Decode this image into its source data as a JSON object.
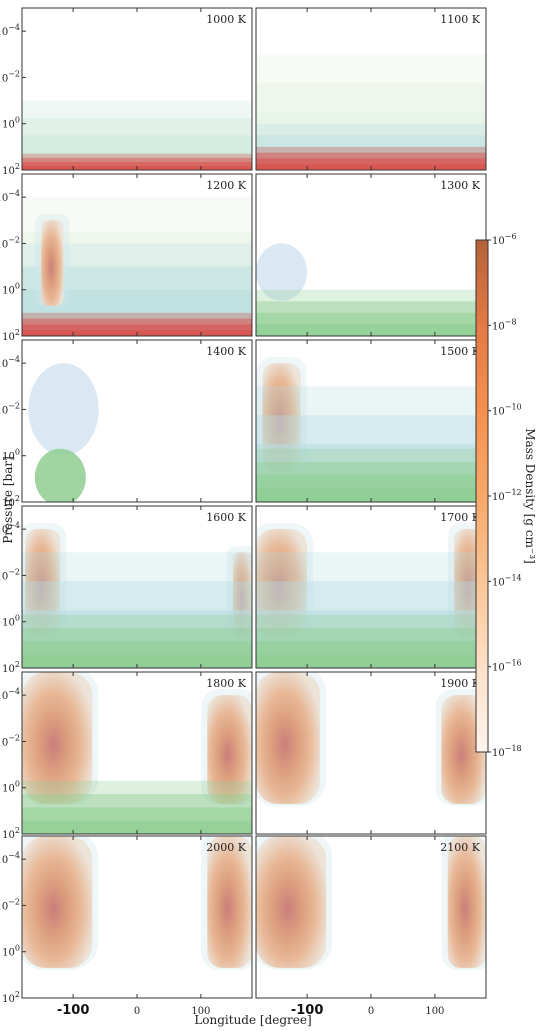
{
  "chart_data": {
    "type": "heatmap",
    "layout": "6 rows x 2 columns of contour panels",
    "xlabel": "Longitude [degree]",
    "ylabel": "Pressure [bar]",
    "x_ticks": [
      "-100",
      "0",
      "100"
    ],
    "x_range": [
      -180,
      180
    ],
    "y_scale": "log",
    "y_inverted": true,
    "y_range_bar": [
      100,
      1e-05
    ],
    "y_ticks": [
      "10^-4",
      "10^-2",
      "10^0",
      "10^2"
    ],
    "colorbar": {
      "label": "Mass Density [g cm^-3]",
      "ticks": [
        "10^-6",
        "10^-8",
        "10^-10",
        "10^-12",
        "10^-14",
        "10^-16",
        "10^-18"
      ],
      "scale": "log",
      "range": [
        1e-18,
        1e-06
      ],
      "colors": [
        "#b5623a",
        "#e47a45",
        "#f6904f",
        "#f8a868",
        "#fbc596",
        "#fde0c8",
        "#fff3eb"
      ]
    },
    "panels": [
      {
        "temperature": "1000 K",
        "row": 0,
        "col": 0,
        "features": [
          {
            "kind": "band",
            "p_top": 0.1,
            "species": "cyan-green stratified cloud deck"
          },
          {
            "kind": "band",
            "p_top": 20,
            "species": "red deep cloud"
          }
        ]
      },
      {
        "temperature": "1100 K",
        "row": 0,
        "col": 1,
        "features": [
          {
            "kind": "band",
            "p_top": 0.001,
            "species": "green haze"
          },
          {
            "kind": "band",
            "p_top": 1,
            "species": "cyan cloud"
          },
          {
            "kind": "band",
            "p_top": 10,
            "species": "red deep cloud"
          }
        ]
      },
      {
        "temperature": "1200 K",
        "row": 1,
        "col": 0,
        "features": [
          {
            "kind": "band",
            "p_top": 0.0001,
            "species": "green haze"
          },
          {
            "kind": "band",
            "p_top": 0.01,
            "species": "cyan cloud"
          },
          {
            "kind": "column",
            "lon": [
              -150,
              -115
            ],
            "p_top": 0.001,
            "species": "orange-red plume"
          },
          {
            "kind": "band",
            "p_top": 10,
            "species": "red deep cloud"
          }
        ]
      },
      {
        "temperature": "1300 K",
        "row": 1,
        "col": 1,
        "features": [
          {
            "kind": "patch",
            "lon": [
              -180,
              -100
            ],
            "p_top": 0.01,
            "species": "light blue cloud"
          },
          {
            "kind": "band",
            "p_top": 1,
            "species": "green cloud"
          }
        ]
      },
      {
        "temperature": "1400 K",
        "row": 2,
        "col": 0,
        "features": [
          {
            "kind": "patch",
            "lon": [
              -170,
              -60
            ],
            "p_top": 0.0001,
            "species": "light blue cloud"
          },
          {
            "kind": "patch",
            "lon": [
              -160,
              -80
            ],
            "p_top": 0.5,
            "species": "green cloud"
          }
        ]
      },
      {
        "temperature": "1500 K",
        "row": 2,
        "col": 1,
        "features": [
          {
            "kind": "column",
            "lon": [
              -170,
              -110
            ],
            "p_top": 0.0001,
            "species": "orange plume"
          },
          {
            "kind": "band",
            "p_top": 0.001,
            "species": "cyan cloud"
          },
          {
            "kind": "band",
            "p_top": 0.5,
            "species": "green cloud"
          }
        ]
      },
      {
        "temperature": "1600 K",
        "row": 3,
        "col": 0,
        "features": [
          {
            "kind": "column",
            "lon": [
              -175,
              -120
            ],
            "p_top": 0.0001,
            "species": "orange plume"
          },
          {
            "kind": "column",
            "lon": [
              150,
              180
            ],
            "p_top": 0.001,
            "species": "orange plume"
          },
          {
            "kind": "band",
            "p_top": 0.001,
            "species": "cyan cloud"
          },
          {
            "kind": "band",
            "p_top": 0.5,
            "species": "green cloud"
          }
        ]
      },
      {
        "temperature": "1700 K",
        "row": 3,
        "col": 1,
        "features": [
          {
            "kind": "column",
            "lon": [
              -180,
              -100
            ],
            "p_top": 0.0001,
            "species": "orange-red plume"
          },
          {
            "kind": "column",
            "lon": [
              130,
              180
            ],
            "p_top": 0.0001,
            "species": "orange-red plume"
          },
          {
            "kind": "band",
            "p_top": 0.001,
            "species": "cyan cloud"
          },
          {
            "kind": "band",
            "p_top": 0.5,
            "species": "green cloud"
          }
        ]
      },
      {
        "temperature": "1800 K",
        "row": 4,
        "col": 0,
        "features": [
          {
            "kind": "column",
            "lon": [
              -180,
              -70
            ],
            "p_top": 1e-05,
            "species": "orange-red plume"
          },
          {
            "kind": "column",
            "lon": [
              110,
              180
            ],
            "p_top": 0.0001,
            "species": "orange-red plume"
          },
          {
            "kind": "band",
            "p_top": 0.5,
            "species": "green cloud"
          }
        ]
      },
      {
        "temperature": "1900 K",
        "row": 4,
        "col": 1,
        "features": [
          {
            "kind": "column",
            "lon": [
              -180,
              -80
            ],
            "p_top": 1e-05,
            "species": "orange-red plume"
          },
          {
            "kind": "column",
            "lon": [
              110,
              180
            ],
            "p_top": 0.0001,
            "species": "orange-red plume"
          }
        ]
      },
      {
        "temperature": "2000 K",
        "row": 5,
        "col": 0,
        "features": [
          {
            "kind": "column",
            "lon": [
              -180,
              -70
            ],
            "p_top": 1e-05,
            "species": "orange-red plume"
          },
          {
            "kind": "column",
            "lon": [
              110,
              180
            ],
            "p_top": 1e-05,
            "species": "orange-red plume"
          }
        ]
      },
      {
        "temperature": "2100 K",
        "row": 5,
        "col": 1,
        "features": [
          {
            "kind": "column",
            "lon": [
              -180,
              -70
            ],
            "p_top": 1e-05,
            "species": "orange-red plume"
          },
          {
            "kind": "column",
            "lon": [
              120,
              180
            ],
            "p_top": 1e-05,
            "species": "orange-red plume"
          }
        ]
      }
    ]
  }
}
